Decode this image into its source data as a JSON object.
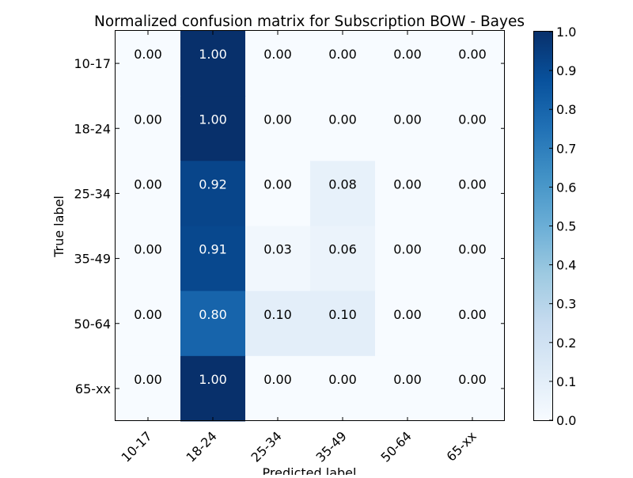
{
  "chart_data": {
    "type": "heatmap",
    "title": "Normalized confusion matrix for Subscription BOW - Bayes",
    "xlabel": "Predicted label",
    "ylabel": "True label",
    "x_categories": [
      "10-17",
      "18-24",
      "25-34",
      "35-49",
      "50-64",
      "65-xx"
    ],
    "y_categories": [
      "10-17",
      "18-24",
      "25-34",
      "35-49",
      "50-64",
      "65-xx"
    ],
    "values": [
      [
        0.0,
        1.0,
        0.0,
        0.0,
        0.0,
        0.0
      ],
      [
        0.0,
        1.0,
        0.0,
        0.0,
        0.0,
        0.0
      ],
      [
        0.0,
        0.92,
        0.0,
        0.08,
        0.0,
        0.0
      ],
      [
        0.0,
        0.91,
        0.03,
        0.06,
        0.0,
        0.0
      ],
      [
        0.0,
        0.8,
        0.1,
        0.1,
        0.0,
        0.0
      ],
      [
        0.0,
        1.0,
        0.0,
        0.0,
        0.0,
        0.0
      ]
    ],
    "value_format": "0.00",
    "colormap": "Blues",
    "colorbar": {
      "range": [
        0.0,
        1.0
      ],
      "ticks": [
        "0.0",
        "0.1",
        "0.2",
        "0.3",
        "0.4",
        "0.5",
        "0.6",
        "0.7",
        "0.8",
        "0.9",
        "1.0"
      ]
    },
    "text_colors": {
      "light": "#ffffff",
      "dark": "#000000"
    },
    "grid": false,
    "legend": "colorbar-right",
    "x_tick_rotation_deg": 45
  }
}
